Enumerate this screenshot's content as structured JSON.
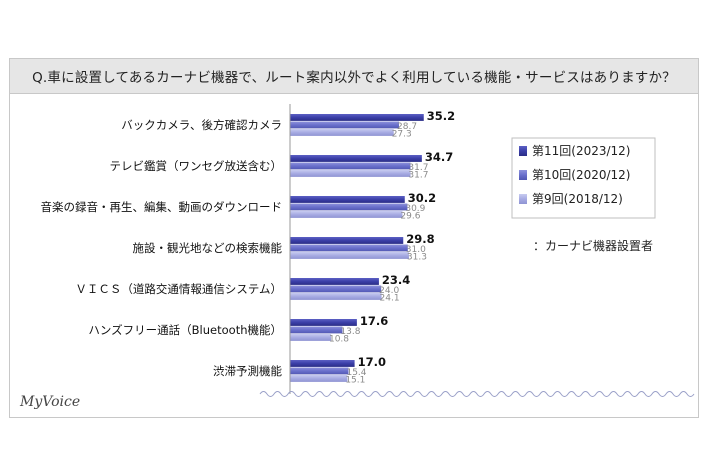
{
  "chart_data": {
    "type": "bar",
    "orientation": "horizontal",
    "title": "Q.車に設置してあるカーナビ機器で、ルート案内以外でよく利用している機能・サービスはありますか？",
    "categories": [
      "バックカメラ、後方確認カメラ",
      "テレビ鑑賞（ワンセグ放送含む）",
      "音楽の録音・再生、編集、動画のダウンロード",
      "施設・観光地などの検索機能",
      "ＶＩＣＳ（道路交通情報通信システム）",
      "ハンズフリー通話（Bluetooth機能）",
      "渋滞予測機能"
    ],
    "series": [
      {
        "name": "第11回(2023/12)",
        "values": [
          35.2,
          34.7,
          30.2,
          29.8,
          23.4,
          17.6,
          17.0
        ],
        "value_labels": [
          "35.2",
          "34.7",
          "30.2",
          "29.8",
          "23.4",
          "17.6",
          "17.0"
        ],
        "color": "#3b3fa8"
      },
      {
        "name": "第10回(2020/12)",
        "values": [
          28.7,
          31.7,
          30.9,
          31.0,
          24.0,
          13.8,
          15.4
        ],
        "value_labels": [
          "28.7",
          "31.7",
          "30.9",
          "31.0",
          "24.0",
          "13.8",
          "15.4"
        ],
        "color": "#6a70cc"
      },
      {
        "name": "第9回(2018/12)",
        "values": [
          27.3,
          31.7,
          29.6,
          31.3,
          24.1,
          10.8,
          15.1
        ],
        "value_labels": [
          "27.3",
          "31.7",
          "29.6",
          "31.3",
          "24.1",
          "10.8",
          "15.1"
        ],
        "color": "#a7abe3"
      }
    ],
    "legend_position": "right",
    "grid": false,
    "note": "：カーナビ機器設置者",
    "brand": "MyVoice"
  }
}
